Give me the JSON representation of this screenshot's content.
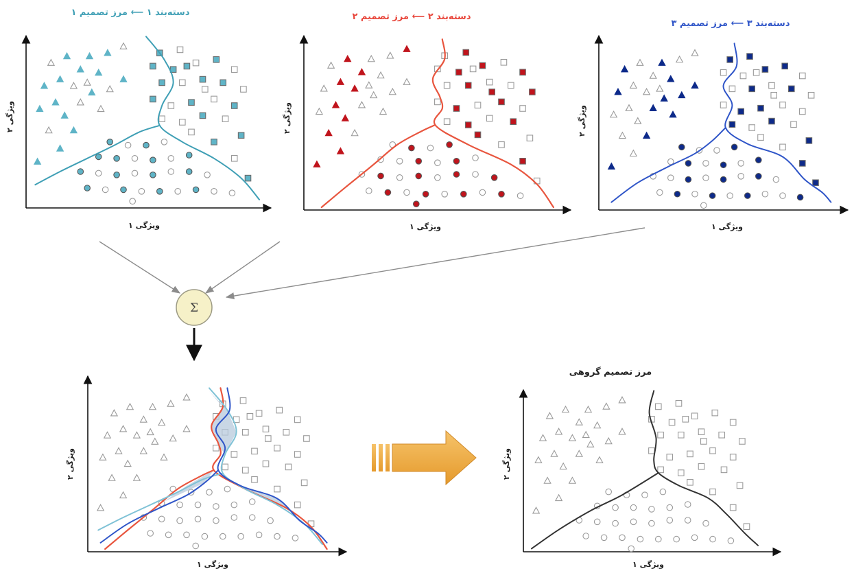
{
  "colors": {
    "teal": "#3f9fb5",
    "teal_fill": "#5fb4c7",
    "red": "#e8553e",
    "red_fill": "#c0141c",
    "blue": "#2f55c8",
    "blue_fill": "#0d2a8a",
    "gray_marker": "#9a9a9a",
    "final_boundary": "#333333",
    "sum_node_fill": "#f6f1c8",
    "big_arrow": "#f0a93a",
    "overlap_fill": "#b7c9dc"
  },
  "panels": {
    "classifier1": {
      "title_boundary": "مرز تصمیم ۱",
      "title_classifier": "دسته‌بند ۱",
      "xlabel": "ویژگی ۱",
      "ylabel": "ویژگی ۲",
      "line_color": "teal",
      "marker_color": "teal_fill"
    },
    "classifier2": {
      "title_boundary": "مرز تصمیم ۲",
      "title_classifier": "دسته‌بند ۲",
      "xlabel": "ویژگی ۱",
      "ylabel": "ویژگی ۲",
      "line_color": "red",
      "marker_color": "red_fill"
    },
    "classifier3": {
      "title_boundary": "مرز تصمیم ۳",
      "title_classifier": "دسته‌بند ۳",
      "xlabel": "ویژگی ۱",
      "ylabel": "ویژگی ۲",
      "line_color": "blue",
      "marker_color": "blue_fill"
    },
    "combined": {
      "xlabel": "ویژگی ۱",
      "ylabel": "ویژگی ۲"
    },
    "ensemble": {
      "title": "مرز تصمیم گروهی",
      "xlabel": "ویژگی ۱",
      "ylabel": "ویژگی ۲"
    }
  },
  "sum_node": {
    "symbol": "Σ"
  },
  "icons": {
    "sum_node": "sigma-icon",
    "flow_arrow": "arrow-right-icon"
  }
}
